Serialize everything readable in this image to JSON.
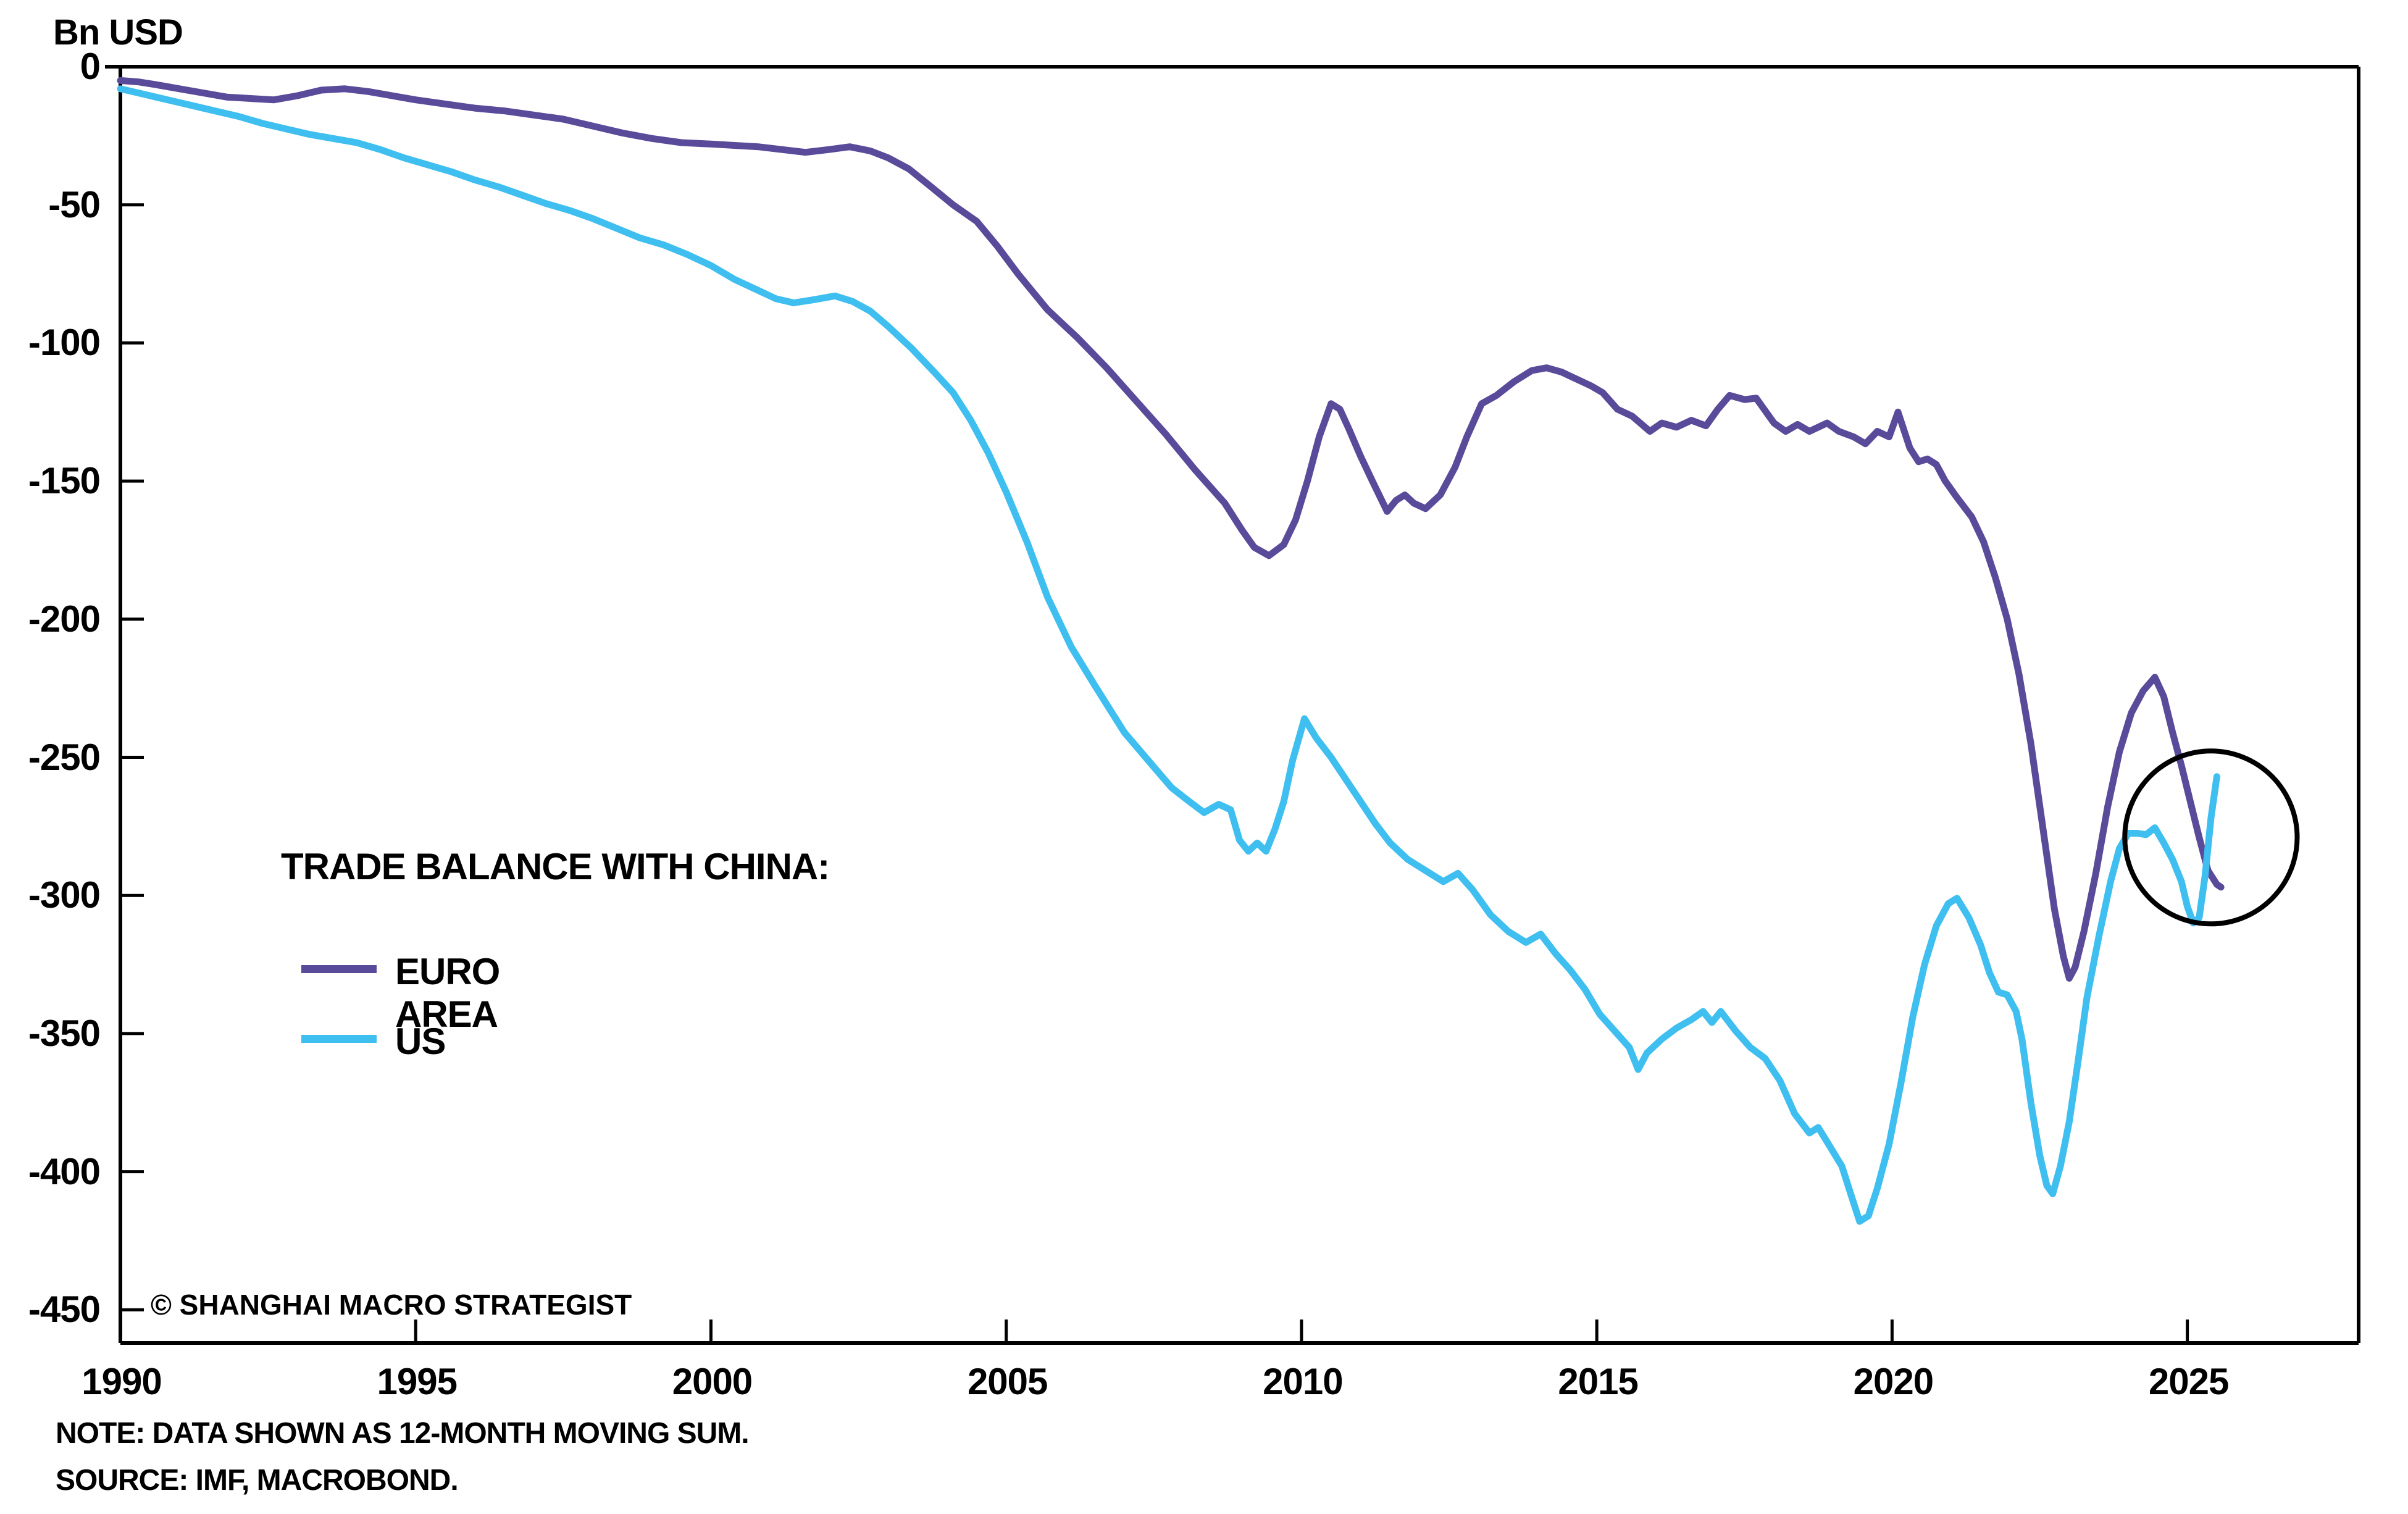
{
  "title": "Bn USD",
  "watermark": "© SHANGHAI MACRO STRATEGIST",
  "notes": [
    "NOTE: DATA SHOWN AS 12-MONTH MOVING SUM.",
    "SOURCE: IMF, MACROBOND."
  ],
  "legend": {
    "title": "TRADE BALANCE WITH CHINA:",
    "items": [
      {
        "label": "EURO AREA",
        "color": "#5A4A9A"
      },
      {
        "label": "US",
        "color": "#3FBEF0"
      }
    ]
  },
  "colors": {
    "axis": "#000000",
    "text": "#000000",
    "annotation": "#000000",
    "background": "#ffffff"
  },
  "chart_data": {
    "type": "line",
    "title": "Bn USD",
    "xlabel": "",
    "ylabel": "Bn USD",
    "grid": false,
    "legend_position": "inside-left-middle",
    "xlim": [
      1990,
      2027.9
    ],
    "ylim": [
      0,
      -462
    ],
    "x_ticks": [
      1990,
      1995,
      2000,
      2005,
      2010,
      2015,
      2020,
      2025
    ],
    "x_tick_labels": [
      "1990",
      "1995",
      "2000",
      "2005",
      "2010",
      "2015",
      "2020",
      "2025"
    ],
    "y_ticks": [
      0,
      -50,
      -100,
      -150,
      -200,
      -250,
      -300,
      -350,
      -400,
      -450
    ],
    "y_tick_labels": [
      "0",
      "-50",
      "-100",
      "-150",
      "-200",
      "-250",
      "-300",
      "-350",
      "-400",
      "-450"
    ],
    "annotation_circle": {
      "x": 2025.4,
      "y": -279,
      "rx_years": 1.46,
      "ry_units": 31.3
    },
    "series": [
      {
        "name": "EURO AREA",
        "color": "#5A4A9A",
        "points": [
          [
            1990.0,
            -5
          ],
          [
            1990.3,
            -5.5
          ],
          [
            1990.6,
            -6.5
          ],
          [
            1991.0,
            -8
          ],
          [
            1991.4,
            -9.5
          ],
          [
            1991.8,
            -11
          ],
          [
            1992.2,
            -11.5
          ],
          [
            1992.6,
            -12
          ],
          [
            1993.0,
            -10.5
          ],
          [
            1993.4,
            -8.5
          ],
          [
            1993.8,
            -8
          ],
          [
            1994.2,
            -9
          ],
          [
            1994.6,
            -10.5
          ],
          [
            1995.0,
            -12
          ],
          [
            1995.5,
            -13.5
          ],
          [
            1996.0,
            -15
          ],
          [
            1996.5,
            -16
          ],
          [
            1997.0,
            -17.5
          ],
          [
            1997.5,
            -19
          ],
          [
            1998.0,
            -21.5
          ],
          [
            1998.5,
            -24
          ],
          [
            1999.0,
            -26
          ],
          [
            1999.5,
            -27.5
          ],
          [
            2000.0,
            -28
          ],
          [
            2000.4,
            -28.5
          ],
          [
            2000.8,
            -29
          ],
          [
            2001.2,
            -30
          ],
          [
            2001.6,
            -31
          ],
          [
            2002.0,
            -30
          ],
          [
            2002.35,
            -29
          ],
          [
            2002.7,
            -30.5
          ],
          [
            2003.0,
            -33
          ],
          [
            2003.35,
            -37
          ],
          [
            2003.7,
            -43
          ],
          [
            2004.1,
            -50
          ],
          [
            2004.5,
            -56
          ],
          [
            2004.85,
            -65
          ],
          [
            2005.2,
            -75
          ],
          [
            2005.7,
            -88
          ],
          [
            2006.2,
            -98
          ],
          [
            2006.7,
            -109
          ],
          [
            2007.2,
            -121
          ],
          [
            2007.7,
            -133
          ],
          [
            2008.2,
            -146
          ],
          [
            2008.7,
            -158
          ],
          [
            2009.0,
            -168
          ],
          [
            2009.2,
            -174
          ],
          [
            2009.45,
            -177
          ],
          [
            2009.7,
            -173
          ],
          [
            2009.9,
            -164
          ],
          [
            2010.1,
            -150
          ],
          [
            2010.3,
            -134
          ],
          [
            2010.5,
            -122
          ],
          [
            2010.65,
            -124
          ],
          [
            2010.8,
            -131
          ],
          [
            2011.0,
            -141
          ],
          [
            2011.2,
            -150
          ],
          [
            2011.45,
            -161
          ],
          [
            2011.6,
            -157
          ],
          [
            2011.75,
            -155
          ],
          [
            2011.9,
            -158
          ],
          [
            2012.1,
            -160
          ],
          [
            2012.35,
            -155
          ],
          [
            2012.6,
            -145
          ],
          [
            2012.8,
            -134
          ],
          [
            2013.05,
            -122
          ],
          [
            2013.3,
            -119
          ],
          [
            2013.6,
            -114
          ],
          [
            2013.9,
            -110
          ],
          [
            2014.15,
            -109
          ],
          [
            2014.4,
            -110.5
          ],
          [
            2014.65,
            -113
          ],
          [
            2014.9,
            -115.5
          ],
          [
            2015.1,
            -118
          ],
          [
            2015.35,
            -124
          ],
          [
            2015.6,
            -126.5
          ],
          [
            2015.9,
            -132
          ],
          [
            2016.1,
            -129
          ],
          [
            2016.35,
            -130.5
          ],
          [
            2016.6,
            -128
          ],
          [
            2016.85,
            -130
          ],
          [
            2017.05,
            -124
          ],
          [
            2017.25,
            -119
          ],
          [
            2017.5,
            -120.5
          ],
          [
            2017.7,
            -120
          ],
          [
            2018.0,
            -129
          ],
          [
            2018.2,
            -132
          ],
          [
            2018.4,
            -129.5
          ],
          [
            2018.6,
            -132
          ],
          [
            2018.9,
            -129
          ],
          [
            2019.1,
            -132
          ],
          [
            2019.35,
            -134
          ],
          [
            2019.55,
            -136.5
          ],
          [
            2019.75,
            -132
          ],
          [
            2019.95,
            -134
          ],
          [
            2020.1,
            -125
          ],
          [
            2020.3,
            -138
          ],
          [
            2020.45,
            -143
          ],
          [
            2020.6,
            -142
          ],
          [
            2020.75,
            -144
          ],
          [
            2020.9,
            -150
          ],
          [
            2021.1,
            -156
          ],
          [
            2021.35,
            -163
          ],
          [
            2021.55,
            -172
          ],
          [
            2021.75,
            -185
          ],
          [
            2021.95,
            -200
          ],
          [
            2022.15,
            -220
          ],
          [
            2022.35,
            -245
          ],
          [
            2022.55,
            -275
          ],
          [
            2022.75,
            -305
          ],
          [
            2022.9,
            -322
          ],
          [
            2023.0,
            -330
          ],
          [
            2023.1,
            -326
          ],
          [
            2023.25,
            -313
          ],
          [
            2023.45,
            -292
          ],
          [
            2023.65,
            -268
          ],
          [
            2023.85,
            -248
          ],
          [
            2024.05,
            -234
          ],
          [
            2024.25,
            -226
          ],
          [
            2024.45,
            -221
          ],
          [
            2024.6,
            -228
          ],
          [
            2024.75,
            -241
          ],
          [
            2024.9,
            -253
          ],
          [
            2025.05,
            -266
          ],
          [
            2025.2,
            -279
          ],
          [
            2025.35,
            -291
          ],
          [
            2025.5,
            -296
          ],
          [
            2025.57,
            -297
          ]
        ]
      },
      {
        "name": "US",
        "color": "#3FBEF0",
        "points": [
          [
            1990.0,
            -8
          ],
          [
            1990.4,
            -10
          ],
          [
            1990.8,
            -12
          ],
          [
            1991.2,
            -14
          ],
          [
            1991.6,
            -16
          ],
          [
            1992.0,
            -18
          ],
          [
            1992.4,
            -20.5
          ],
          [
            1992.8,
            -22.5
          ],
          [
            1993.2,
            -24.5
          ],
          [
            1993.6,
            -26
          ],
          [
            1994.0,
            -27.5
          ],
          [
            1994.4,
            -30
          ],
          [
            1994.8,
            -33
          ],
          [
            1995.2,
            -35.5
          ],
          [
            1995.6,
            -38
          ],
          [
            1996.0,
            -41
          ],
          [
            1996.4,
            -43.5
          ],
          [
            1996.8,
            -46.5
          ],
          [
            1997.2,
            -49.5
          ],
          [
            1997.6,
            -52
          ],
          [
            1998.0,
            -55
          ],
          [
            1998.4,
            -58.5
          ],
          [
            1998.8,
            -62
          ],
          [
            1999.2,
            -64.5
          ],
          [
            1999.6,
            -68
          ],
          [
            2000.0,
            -72
          ],
          [
            2000.4,
            -77
          ],
          [
            2000.8,
            -81
          ],
          [
            2001.1,
            -84
          ],
          [
            2001.4,
            -85.5
          ],
          [
            2001.7,
            -84.5
          ],
          [
            2002.1,
            -83
          ],
          [
            2002.4,
            -85
          ],
          [
            2002.7,
            -88.5
          ],
          [
            2003.0,
            -94
          ],
          [
            2003.4,
            -102
          ],
          [
            2003.8,
            -111
          ],
          [
            2004.1,
            -118
          ],
          [
            2004.4,
            -128
          ],
          [
            2004.7,
            -140
          ],
          [
            2005.0,
            -154
          ],
          [
            2005.35,
            -172
          ],
          [
            2005.7,
            -192
          ],
          [
            2006.1,
            -210
          ],
          [
            2006.5,
            -224
          ],
          [
            2007.0,
            -241
          ],
          [
            2007.4,
            -251
          ],
          [
            2007.8,
            -261
          ],
          [
            2008.1,
            -266
          ],
          [
            2008.35,
            -270
          ],
          [
            2008.6,
            -267
          ],
          [
            2008.8,
            -269
          ],
          [
            2008.95,
            -280
          ],
          [
            2009.1,
            -284
          ],
          [
            2009.25,
            -281
          ],
          [
            2009.4,
            -284
          ],
          [
            2009.55,
            -276
          ],
          [
            2009.7,
            -266
          ],
          [
            2009.85,
            -251
          ],
          [
            2010.05,
            -236
          ],
          [
            2010.25,
            -243
          ],
          [
            2010.5,
            -250
          ],
          [
            2010.75,
            -258
          ],
          [
            2011.0,
            -266
          ],
          [
            2011.25,
            -274
          ],
          [
            2011.5,
            -281
          ],
          [
            2011.8,
            -287
          ],
          [
            2012.1,
            -291
          ],
          [
            2012.4,
            -295
          ],
          [
            2012.65,
            -292
          ],
          [
            2012.9,
            -298
          ],
          [
            2013.2,
            -307
          ],
          [
            2013.5,
            -313
          ],
          [
            2013.8,
            -317
          ],
          [
            2014.05,
            -314
          ],
          [
            2014.3,
            -321
          ],
          [
            2014.55,
            -327
          ],
          [
            2014.8,
            -334
          ],
          [
            2015.05,
            -343
          ],
          [
            2015.3,
            -349
          ],
          [
            2015.55,
            -355
          ],
          [
            2015.7,
            -363
          ],
          [
            2015.85,
            -357
          ],
          [
            2016.1,
            -352
          ],
          [
            2016.35,
            -348
          ],
          [
            2016.6,
            -345
          ],
          [
            2016.8,
            -342
          ],
          [
            2016.95,
            -346
          ],
          [
            2017.1,
            -342
          ],
          [
            2017.35,
            -349
          ],
          [
            2017.6,
            -355
          ],
          [
            2017.85,
            -359
          ],
          [
            2018.1,
            -367
          ],
          [
            2018.35,
            -379
          ],
          [
            2018.6,
            -386
          ],
          [
            2018.75,
            -384
          ],
          [
            2018.95,
            -391
          ],
          [
            2019.15,
            -398
          ],
          [
            2019.3,
            -408
          ],
          [
            2019.45,
            -418
          ],
          [
            2019.6,
            -416
          ],
          [
            2019.75,
            -406
          ],
          [
            2019.95,
            -390
          ],
          [
            2020.15,
            -368
          ],
          [
            2020.35,
            -344
          ],
          [
            2020.55,
            -325
          ],
          [
            2020.75,
            -311
          ],
          [
            2020.95,
            -303
          ],
          [
            2021.1,
            -301
          ],
          [
            2021.3,
            -308
          ],
          [
            2021.5,
            -318
          ],
          [
            2021.65,
            -328
          ],
          [
            2021.8,
            -335
          ],
          [
            2021.95,
            -336
          ],
          [
            2022.1,
            -342
          ],
          [
            2022.2,
            -352
          ],
          [
            2022.35,
            -375
          ],
          [
            2022.5,
            -394
          ],
          [
            2022.62,
            -405
          ],
          [
            2022.72,
            -408
          ],
          [
            2022.85,
            -398
          ],
          [
            2023.0,
            -382
          ],
          [
            2023.15,
            -360
          ],
          [
            2023.3,
            -337
          ],
          [
            2023.5,
            -315
          ],
          [
            2023.7,
            -295
          ],
          [
            2023.85,
            -283
          ],
          [
            2024.0,
            -277.5
          ],
          [
            2024.15,
            -277.5
          ],
          [
            2024.3,
            -278
          ],
          [
            2024.45,
            -275.5
          ],
          [
            2024.6,
            -281
          ],
          [
            2024.75,
            -287
          ],
          [
            2024.9,
            -295
          ],
          [
            2025.0,
            -304
          ],
          [
            2025.1,
            -310
          ],
          [
            2025.2,
            -308
          ],
          [
            2025.3,
            -293
          ],
          [
            2025.4,
            -272
          ],
          [
            2025.5,
            -257
          ]
        ]
      }
    ]
  }
}
